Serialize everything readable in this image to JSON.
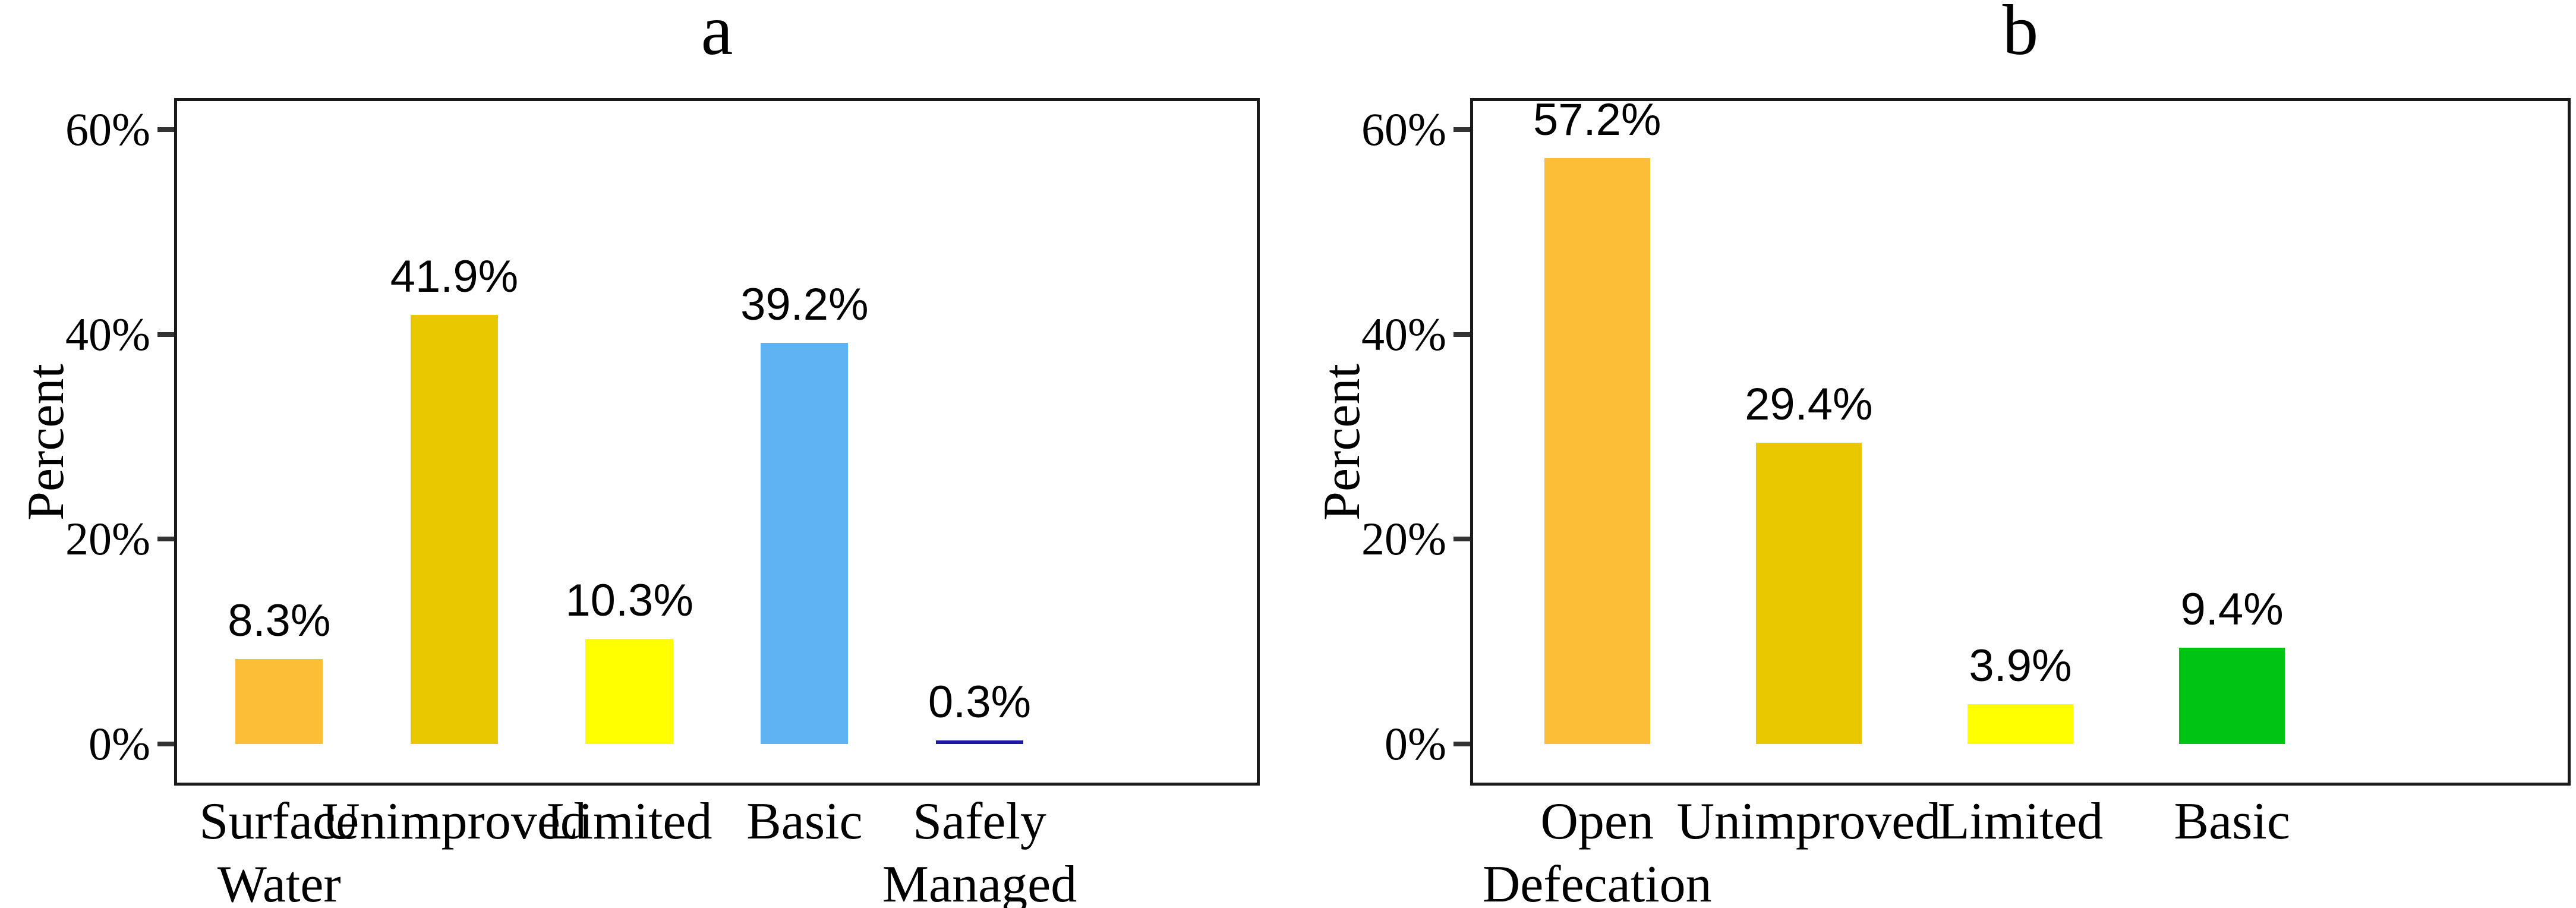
{
  "figure": {
    "background": "#ffffff",
    "text_color": "#000000",
    "axis_color": "#1a1a1a",
    "tick_color": "#333333"
  },
  "chart_data": [
    {
      "type": "bar",
      "panel_label": "a",
      "title": "a",
      "ylabel": "Percent",
      "xlabel": "",
      "grid": false,
      "legend": false,
      "ylim": [
        -4.5,
        63
      ],
      "ytick_values": [
        0,
        20,
        40,
        60
      ],
      "ytick_labels": [
        "0%",
        "20%",
        "40%",
        "60%"
      ],
      "categories": [
        "Surface Water",
        "Unimproved",
        "Limited",
        "Basic",
        "Safely Managed"
      ],
      "category_lines": [
        [
          "Surface",
          "Water"
        ],
        [
          "Unimproved"
        ],
        [
          "Limited"
        ],
        [
          "Basic"
        ],
        [
          "Safely",
          "Managed"
        ]
      ],
      "values": [
        8.3,
        41.9,
        10.3,
        39.2,
        0.3
      ],
      "value_labels": [
        "8.3%",
        "41.9%",
        "10.3%",
        "39.2%",
        "0.3%"
      ],
      "bar_colors": [
        "#FCBE37",
        "#E9C800",
        "#FFFF00",
        "#60B3F2",
        "#1C19A9"
      ]
    },
    {
      "type": "bar",
      "panel_label": "b",
      "title": "b",
      "ylabel": "Percent",
      "xlabel": "",
      "grid": false,
      "legend": false,
      "ylim": [
        -4.5,
        63
      ],
      "ytick_values": [
        0,
        20,
        40,
        60
      ],
      "ytick_labels": [
        "0%",
        "20%",
        "40%",
        "60%"
      ],
      "categories": [
        "Open Defecation",
        "Unimproved",
        "Limited",
        "Basic"
      ],
      "category_lines": [
        [
          "Open",
          "Defecation"
        ],
        [
          "Unimproved"
        ],
        [
          "Limited"
        ],
        [
          "Basic"
        ]
      ],
      "values": [
        57.2,
        29.4,
        3.9,
        9.4
      ],
      "value_labels": [
        "57.2%",
        "29.4%",
        "3.9%",
        "9.4%"
      ],
      "bar_colors": [
        "#FCBE37",
        "#E9C800",
        "#FFFF00",
        "#00C414"
      ]
    }
  ]
}
